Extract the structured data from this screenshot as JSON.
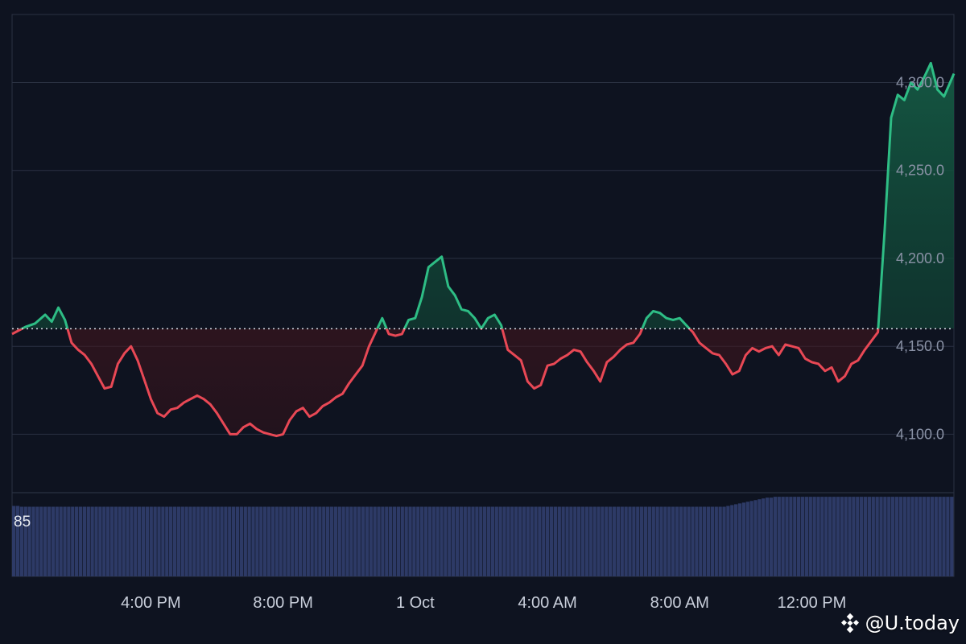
{
  "chart_data": {
    "type": "area",
    "baseline": 4160,
    "ylim": [
      4067.7,
      4346.9
    ],
    "y_ticks": [
      {
        "value": 4100,
        "label": "4,100.0"
      },
      {
        "value": 4150,
        "label": "4,150.0"
      },
      {
        "value": 4200,
        "label": "4,200.0"
      },
      {
        "value": 4250,
        "label": "4,250.0"
      },
      {
        "value": 4300,
        "label": "4,300.0"
      }
    ],
    "x_ticks": [
      "4:00 PM",
      "8:00 PM",
      "1 Oct",
      "4:00 AM",
      "8:00 AM",
      "12:00 PM"
    ],
    "x_ticks_hours": [
      4,
      8,
      12,
      16,
      20,
      24
    ],
    "x_range_hours": [
      -0.2,
      28.3
    ],
    "points": [
      [
        -0.2,
        4157
      ],
      [
        0.2,
        4161
      ],
      [
        0.5,
        4163
      ],
      [
        0.8,
        4168
      ],
      [
        1.0,
        4164
      ],
      [
        1.2,
        4172
      ],
      [
        1.4,
        4165
      ],
      [
        1.6,
        4152
      ],
      [
        1.8,
        4148
      ],
      [
        2.0,
        4145
      ],
      [
        2.2,
        4140
      ],
      [
        2.4,
        4133
      ],
      [
        2.6,
        4126
      ],
      [
        2.8,
        4127
      ],
      [
        3.0,
        4140
      ],
      [
        3.2,
        4146
      ],
      [
        3.4,
        4150
      ],
      [
        3.6,
        4142
      ],
      [
        3.8,
        4131
      ],
      [
        4.0,
        4120
      ],
      [
        4.2,
        4112
      ],
      [
        4.4,
        4110
      ],
      [
        4.6,
        4114
      ],
      [
        4.8,
        4115
      ],
      [
        5.0,
        4118
      ],
      [
        5.2,
        4120
      ],
      [
        5.4,
        4122
      ],
      [
        5.6,
        4120
      ],
      [
        5.8,
        4117
      ],
      [
        6.0,
        4112
      ],
      [
        6.2,
        4106
      ],
      [
        6.4,
        4100
      ],
      [
        6.6,
        4100
      ],
      [
        6.8,
        4104
      ],
      [
        7.0,
        4106
      ],
      [
        7.2,
        4103
      ],
      [
        7.4,
        4101
      ],
      [
        7.6,
        4100
      ],
      [
        7.8,
        4099
      ],
      [
        8.0,
        4100
      ],
      [
        8.2,
        4108
      ],
      [
        8.4,
        4113
      ],
      [
        8.6,
        4115
      ],
      [
        8.8,
        4110
      ],
      [
        9.0,
        4112
      ],
      [
        9.2,
        4116
      ],
      [
        9.4,
        4118
      ],
      [
        9.6,
        4121
      ],
      [
        9.8,
        4123
      ],
      [
        10.0,
        4129
      ],
      [
        10.2,
        4134
      ],
      [
        10.4,
        4139
      ],
      [
        10.6,
        4150
      ],
      [
        10.8,
        4158
      ],
      [
        11.0,
        4166
      ],
      [
        11.2,
        4157
      ],
      [
        11.4,
        4156
      ],
      [
        11.6,
        4157
      ],
      [
        11.8,
        4165
      ],
      [
        12.0,
        4166
      ],
      [
        12.2,
        4178
      ],
      [
        12.4,
        4195
      ],
      [
        12.6,
        4198
      ],
      [
        12.8,
        4201
      ],
      [
        13.0,
        4184
      ],
      [
        13.2,
        4179
      ],
      [
        13.4,
        4171
      ],
      [
        13.6,
        4170
      ],
      [
        13.8,
        4166
      ],
      [
        14.0,
        4160
      ],
      [
        14.2,
        4166
      ],
      [
        14.4,
        4168
      ],
      [
        14.6,
        4162
      ],
      [
        14.8,
        4148
      ],
      [
        15.0,
        4145
      ],
      [
        15.2,
        4142
      ],
      [
        15.4,
        4130
      ],
      [
        15.6,
        4126
      ],
      [
        15.8,
        4128
      ],
      [
        16.0,
        4139
      ],
      [
        16.2,
        4140
      ],
      [
        16.4,
        4143
      ],
      [
        16.6,
        4145
      ],
      [
        16.8,
        4148
      ],
      [
        17.0,
        4147
      ],
      [
        17.2,
        4141
      ],
      [
        17.4,
        4136
      ],
      [
        17.6,
        4130
      ],
      [
        17.8,
        4141
      ],
      [
        18.0,
        4144
      ],
      [
        18.2,
        4148
      ],
      [
        18.4,
        4151
      ],
      [
        18.6,
        4152
      ],
      [
        18.8,
        4157
      ],
      [
        19.0,
        4166
      ],
      [
        19.2,
        4170
      ],
      [
        19.4,
        4169
      ],
      [
        19.6,
        4166
      ],
      [
        19.8,
        4165
      ],
      [
        20.0,
        4166
      ],
      [
        20.2,
        4162
      ],
      [
        20.4,
        4158
      ],
      [
        20.6,
        4152
      ],
      [
        20.8,
        4149
      ],
      [
        21.0,
        4146
      ],
      [
        21.2,
        4145
      ],
      [
        21.4,
        4140
      ],
      [
        21.6,
        4134
      ],
      [
        21.8,
        4136
      ],
      [
        22.0,
        4145
      ],
      [
        22.2,
        4149
      ],
      [
        22.4,
        4147
      ],
      [
        22.6,
        4149
      ],
      [
        22.8,
        4150
      ],
      [
        23.0,
        4145
      ],
      [
        23.2,
        4151
      ],
      [
        23.4,
        4150
      ],
      [
        23.6,
        4149
      ],
      [
        23.8,
        4143
      ],
      [
        24.0,
        4141
      ],
      [
        24.2,
        4140
      ],
      [
        24.4,
        4136
      ],
      [
        24.6,
        4138
      ],
      [
        24.8,
        4130
      ],
      [
        25.0,
        4133
      ],
      [
        25.2,
        4140
      ],
      [
        25.4,
        4142
      ],
      [
        25.6,
        4148
      ],
      [
        25.8,
        4153
      ],
      [
        26.0,
        4158
      ],
      [
        26.2,
        4215
      ],
      [
        26.4,
        4280
      ],
      [
        26.6,
        4293
      ],
      [
        26.8,
        4290
      ],
      [
        27.0,
        4300
      ],
      [
        27.2,
        4296
      ],
      [
        27.4,
        4303
      ],
      [
        27.6,
        4311
      ],
      [
        27.8,
        4296
      ],
      [
        28.0,
        4292
      ],
      [
        28.3,
        4305
      ]
    ],
    "volume": {
      "label": "85",
      "values": [
        85,
        85,
        84,
        84,
        84,
        84,
        84,
        84,
        84,
        84,
        84,
        84,
        84,
        84,
        84,
        84,
        84,
        84,
        84,
        84,
        84,
        84,
        84,
        84,
        84,
        84,
        84,
        84,
        84,
        84,
        84,
        84,
        84,
        84,
        84,
        84,
        84,
        84,
        84,
        84,
        84,
        84,
        84,
        84,
        84,
        84,
        84,
        84,
        84,
        84,
        84,
        84,
        84,
        84,
        84,
        84,
        84,
        84,
        84,
        84,
        84,
        84,
        84,
        84,
        84,
        84,
        84,
        84,
        84,
        84,
        84,
        84,
        84,
        84,
        84,
        84,
        84,
        84,
        84,
        84,
        84,
        84,
        84,
        84,
        84,
        84,
        84,
        84,
        84,
        84,
        84,
        84,
        84,
        84,
        84,
        84,
        84,
        84,
        84,
        84,
        84,
        84,
        84,
        84,
        84,
        84,
        84,
        84,
        84,
        84,
        84,
        84,
        84,
        84,
        84,
        84,
        84,
        84,
        84,
        84,
        84,
        84,
        84,
        84,
        84,
        84,
        84,
        84,
        84,
        84,
        84,
        84,
        84,
        84,
        84,
        84,
        84,
        84,
        84,
        84,
        84,
        84,
        84,
        84,
        84,
        84,
        84,
        84,
        84,
        84,
        84,
        84,
        84,
        84,
        84,
        84,
        84,
        84,
        84,
        84,
        84,
        84,
        84,
        84,
        84,
        84,
        84,
        84,
        84,
        84,
        84,
        84,
        84,
        84,
        84,
        84,
        84,
        84,
        84,
        84,
        84,
        84,
        85,
        86,
        87,
        88,
        89,
        90,
        91,
        92,
        93,
        94,
        95,
        95,
        96,
        96,
        96,
        96,
        96,
        96,
        96,
        96,
        96,
        96,
        96,
        96,
        96,
        96,
        96,
        96,
        96,
        96,
        96,
        96,
        96,
        96,
        96,
        96,
        96,
        96,
        96,
        96,
        96,
        96,
        96,
        96,
        96,
        96,
        96,
        96,
        96,
        96,
        96,
        96,
        96,
        96,
        96,
        96,
        96,
        96
      ]
    }
  },
  "watermark": "@U.today",
  "colors": {
    "background": "#0e1320",
    "up_line": "#2ebd85",
    "down_line": "#e84855",
    "grid": "#2a3142",
    "baseline": "#d7dbe5",
    "volume": "#2d3a66"
  }
}
